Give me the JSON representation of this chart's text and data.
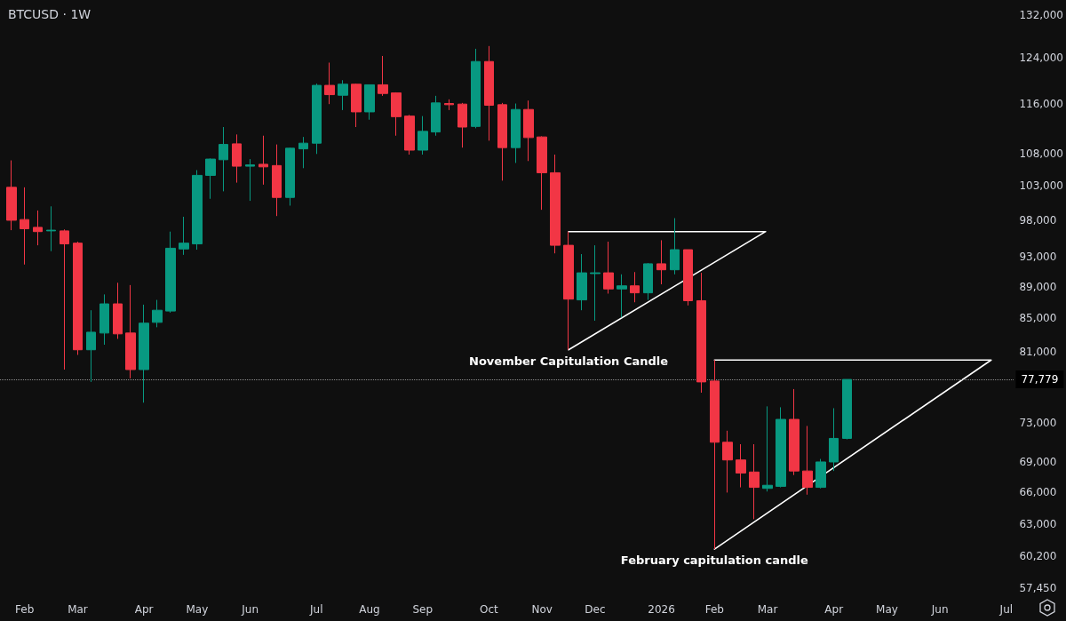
{
  "chart_data": {
    "type": "candlestick",
    "title": "BTCUSD · 1W",
    "x": [
      "2025-01-27",
      "2025-02-03",
      "2025-02-10",
      "2025-02-17",
      "2025-02-24",
      "2025-03-03",
      "2025-03-10",
      "2025-03-17",
      "2025-03-24",
      "2025-03-31",
      "2025-04-07",
      "2025-04-14",
      "2025-04-21",
      "2025-04-28",
      "2025-05-05",
      "2025-05-12",
      "2025-05-19",
      "2025-05-26",
      "2025-06-02",
      "2025-06-09",
      "2025-06-16",
      "2025-06-23",
      "2025-06-30",
      "2025-07-07",
      "2025-07-14",
      "2025-07-21",
      "2025-07-28",
      "2025-08-04",
      "2025-08-11",
      "2025-08-18",
      "2025-08-25",
      "2025-09-01",
      "2025-09-08",
      "2025-09-15",
      "2025-09-22",
      "2025-09-29",
      "2025-10-06",
      "2025-10-13",
      "2025-10-20",
      "2025-10-27",
      "2025-11-03",
      "2025-11-10",
      "2025-11-17",
      "2025-11-24",
      "2025-12-01",
      "2025-12-08",
      "2025-12-15",
      "2025-12-22",
      "2025-12-29",
      "2026-01-05",
      "2026-01-12",
      "2026-01-19",
      "2026-01-26",
      "2026-02-02",
      "2026-02-09",
      "2026-02-16",
      "2026-02-23",
      "2026-03-02",
      "2026-03-09",
      "2026-03-16",
      "2026-03-23",
      "2026-03-30",
      "2026-04-06",
      "2026-04-13"
    ],
    "ohlc": [
      [
        102800,
        106900,
        96600,
        98000
      ],
      [
        98100,
        102800,
        91900,
        96800
      ],
      [
        97000,
        99400,
        94500,
        96400
      ],
      [
        96500,
        100000,
        93700,
        96600
      ],
      [
        96500,
        96700,
        78900,
        94700
      ],
      [
        94800,
        95000,
        80600,
        81200
      ],
      [
        81200,
        86000,
        77500,
        83300
      ],
      [
        83200,
        88000,
        81800,
        86800
      ],
      [
        86800,
        89500,
        82500,
        83100
      ],
      [
        83200,
        89200,
        77900,
        78900
      ],
      [
        78900,
        86700,
        75200,
        84400
      ],
      [
        84500,
        87300,
        83900,
        86000
      ],
      [
        85900,
        96400,
        85700,
        94100
      ],
      [
        94000,
        98500,
        93200,
        94800
      ],
      [
        94700,
        105400,
        93900,
        104600
      ],
      [
        104600,
        107200,
        101100,
        107100
      ],
      [
        107000,
        112200,
        102200,
        109400
      ],
      [
        109500,
        111000,
        103500,
        106000
      ],
      [
        106000,
        107100,
        100800,
        106200
      ],
      [
        106300,
        110800,
        103200,
        105900
      ],
      [
        106100,
        109400,
        98600,
        101300
      ],
      [
        101300,
        108900,
        100100,
        108800
      ],
      [
        108700,
        110600,
        105700,
        109600
      ],
      [
        109600,
        119500,
        107900,
        119200
      ],
      [
        119200,
        123200,
        116000,
        117600
      ],
      [
        117500,
        120100,
        115000,
        119400
      ],
      [
        119400,
        119500,
        112200,
        114700
      ],
      [
        114700,
        119300,
        113400,
        119300
      ],
      [
        119300,
        124400,
        117400,
        117800
      ],
      [
        117900,
        118000,
        110800,
        113900
      ],
      [
        114000,
        114200,
        107800,
        108500
      ],
      [
        108500,
        114000,
        107800,
        111500
      ],
      [
        111400,
        117400,
        110800,
        116200
      ],
      [
        116100,
        116800,
        115000,
        115900
      ],
      [
        116000,
        116200,
        108900,
        112200
      ],
      [
        112300,
        125700,
        112000,
        123400
      ],
      [
        123400,
        126200,
        110000,
        115800
      ],
      [
        115900,
        116200,
        103800,
        108900
      ],
      [
        108900,
        116100,
        106500,
        115100
      ],
      [
        115100,
        116600,
        106800,
        110500
      ],
      [
        110600,
        110700,
        99500,
        105000
      ],
      [
        105000,
        107800,
        93400,
        94500
      ],
      [
        94500,
        96400,
        81200,
        87400
      ],
      [
        87300,
        93300,
        86000,
        90800
      ],
      [
        90700,
        94500,
        84700,
        90800
      ],
      [
        90800,
        95000,
        88100,
        88700
      ],
      [
        88700,
        90600,
        85100,
        89100
      ],
      [
        89100,
        90900,
        87000,
        88200
      ],
      [
        88200,
        92100,
        87300,
        92000
      ],
      [
        92000,
        95200,
        89300,
        91200
      ],
      [
        91200,
        98300,
        90600,
        93900
      ],
      [
        93900,
        93900,
        86600,
        87200
      ],
      [
        87200,
        90800,
        76300,
        77500
      ],
      [
        77600,
        80000,
        60800,
        71000
      ],
      [
        71000,
        72200,
        66000,
        69200
      ],
      [
        69200,
        70800,
        66500,
        67900
      ],
      [
        68000,
        70800,
        63500,
        66500
      ],
      [
        66400,
        74800,
        66100,
        66700
      ],
      [
        66600,
        74700,
        66500,
        73400
      ],
      [
        73400,
        76700,
        67700,
        68100
      ],
      [
        68100,
        72700,
        65800,
        66500
      ],
      [
        66500,
        69300,
        66400,
        69000
      ],
      [
        69000,
        74600,
        68100,
        71400
      ],
      [
        71400,
        77779,
        71300,
        77779
      ]
    ],
    "colors": [
      "#f23645",
      "#f23645",
      "#f23645",
      "#089981",
      "#f23645",
      "#f23645",
      "#089981",
      "#089981",
      "#f23645",
      "#f23645",
      "#089981",
      "#089981",
      "#089981",
      "#089981",
      "#089981",
      "#089981",
      "#089981",
      "#f23645",
      "#089981",
      "#f23645",
      "#f23645",
      "#089981",
      "#089981",
      "#089981",
      "#f23645",
      "#089981",
      "#f23645",
      "#089981",
      "#f23645",
      "#f23645",
      "#f23645",
      "#089981",
      "#089981",
      "#f23645",
      "#f23645",
      "#089981",
      "#f23645",
      "#f23645",
      "#089981",
      "#f23645",
      "#f23645",
      "#f23645",
      "#f23645",
      "#089981",
      "#089981",
      "#f23645",
      "#089981",
      "#f23645",
      "#089981",
      "#f23645",
      "#089981",
      "#f23645",
      "#f23645",
      "#f23645",
      "#f23645",
      "#f23645",
      "#f23645",
      "#089981",
      "#089981",
      "#f23645",
      "#f23645",
      "#089981",
      "#089981",
      "#089981"
    ],
    "series": [
      {
        "type": "line",
        "color": "#ffffff",
        "x": [
          "2025-11-17",
          "2026-03-01",
          "2025-11-17"
        ],
        "values": [
          96400,
          96400,
          81200
        ]
      },
      {
        "type": "line",
        "color": "#ffffff",
        "x": [
          "2026-02-02",
          "2026-06-28",
          "2026-02-02"
        ],
        "values": [
          80000,
          80000,
          60800
        ]
      }
    ],
    "xlim": [
      "2025-01-21",
      "2026-07-10"
    ],
    "xticks": [
      {
        "value": "2025-02-03",
        "label": "Feb"
      },
      {
        "value": "2025-03-03",
        "label": "Mar"
      },
      {
        "value": "2025-04-07",
        "label": "Apr"
      },
      {
        "value": "2025-05-05",
        "label": "May"
      },
      {
        "value": "2025-06-02",
        "label": "Jun"
      },
      {
        "value": "2025-07-07",
        "label": "Jul"
      },
      {
        "value": "2025-08-04",
        "label": "Aug"
      },
      {
        "value": "2025-09-01",
        "label": "Sep"
      },
      {
        "value": "2025-10-06",
        "label": "Oct"
      },
      {
        "value": "2025-11-03",
        "label": "Nov"
      },
      {
        "value": "2025-12-01",
        "label": "Dec"
      },
      {
        "value": "2026-01-05",
        "label": "2026"
      },
      {
        "value": "2026-02-02",
        "label": "Feb"
      },
      {
        "value": "2026-03-02",
        "label": "Mar"
      },
      {
        "value": "2026-04-06",
        "label": "Apr"
      },
      {
        "value": "2026-05-04",
        "label": "May"
      },
      {
        "value": "2026-06-01",
        "label": "Jun"
      },
      {
        "value": "2026-07-06",
        "label": "Jul"
      }
    ],
    "ylim": [
      57450,
      132000
    ],
    "yticks": [
      {
        "value": 57450,
        "label": "57,450"
      },
      {
        "value": 60200,
        "label": "60,200"
      },
      {
        "value": 63000,
        "label": "63,000"
      },
      {
        "value": 66000,
        "label": "66,000"
      },
      {
        "value": 69000,
        "label": "69,000"
      },
      {
        "value": 73000,
        "label": "73,000"
      },
      {
        "value": 81000,
        "label": "81,000"
      },
      {
        "value": 85000,
        "label": "85,000"
      },
      {
        "value": 89000,
        "label": "89,000"
      },
      {
        "value": 93000,
        "label": "93,000"
      },
      {
        "value": 98000,
        "label": "98,000"
      },
      {
        "value": 103000,
        "label": "103,000"
      },
      {
        "value": 108000,
        "label": "108,000"
      },
      {
        "value": 116000,
        "label": "116,000"
      },
      {
        "value": 124000,
        "label": "124,000"
      },
      {
        "value": 132000,
        "label": "132,000"
      }
    ],
    "log": true,
    "ref_lines": [
      {
        "axis": "y",
        "value": 77779,
        "label": "77,779",
        "line_style": "dotted"
      }
    ],
    "annotations": [
      {
        "text": "November Capitulation Candle",
        "x": "2025-11-17",
        "y": 81200
      },
      {
        "text": "February capitulation candle",
        "x": "2026-02-02",
        "y": 60800
      }
    ]
  }
}
